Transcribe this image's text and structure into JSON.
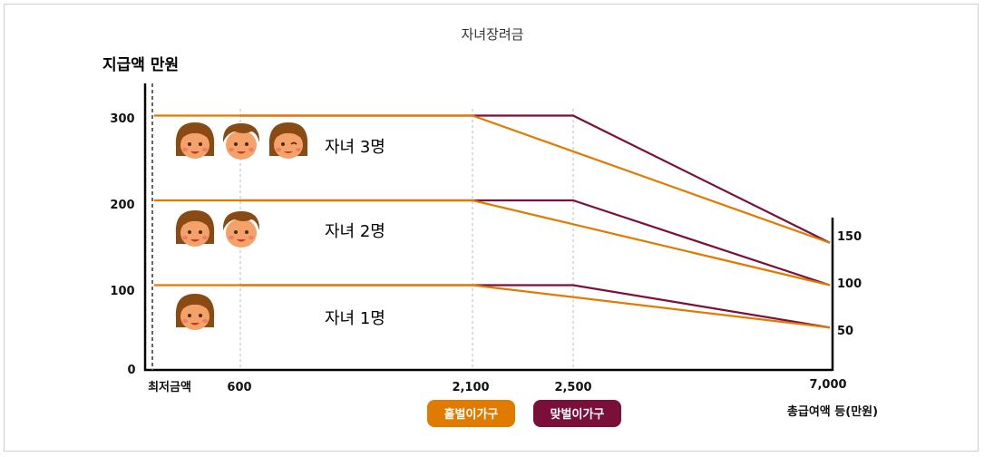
{
  "chart_data": {
    "type": "line",
    "title": "자녀장려금",
    "ylabel": "지급액 만원",
    "xlabel": "총급여액 등(만원)",
    "x_ticks": [
      "최저금액",
      "600",
      "2,100",
      "2,500",
      "7,000"
    ],
    "y_ticks": [
      "0",
      "100",
      "200",
      "300"
    ],
    "right_ticks": [
      "150",
      "100",
      "50"
    ],
    "ylim": [
      0,
      350
    ],
    "grid": false,
    "legend_position": "bottom",
    "series": [
      {
        "name": "홑벌이가구",
        "color": "#e07b00",
        "lines": [
          {
            "points": [
              [
                0,
                100
              ],
              [
                600,
                100
              ],
              [
                2100,
                100
              ],
              [
                7000,
                50
              ]
            ]
          },
          {
            "points": [
              [
                0,
                200
              ],
              [
                600,
                200
              ],
              [
                2100,
                200
              ],
              [
                7000,
                100
              ]
            ]
          },
          {
            "points": [
              [
                0,
                300
              ],
              [
                600,
                300
              ],
              [
                2100,
                300
              ],
              [
                7000,
                150
              ]
            ]
          }
        ]
      },
      {
        "name": "맞벌이가구",
        "color": "#7a0f3a",
        "lines": [
          {
            "points": [
              [
                600,
                100
              ],
              [
                2500,
                100
              ],
              [
                7000,
                50
              ]
            ]
          },
          {
            "points": [
              [
                600,
                200
              ],
              [
                2500,
                200
              ],
              [
                7000,
                100
              ]
            ]
          },
          {
            "points": [
              [
                600,
                300
              ],
              [
                2500,
                300
              ],
              [
                7000,
                150
              ]
            ]
          }
        ]
      }
    ],
    "annotations": [
      "자녀 1명",
      "자녀 2명",
      "자녀 3명"
    ]
  },
  "icons": {
    "one_child": [
      "girl-face-icon"
    ],
    "two_children": [
      "girl-face-icon",
      "boy-face-icon"
    ],
    "three_children": [
      "girl-face-icon",
      "boy-face-icon",
      "winking-girl-face-icon"
    ]
  }
}
